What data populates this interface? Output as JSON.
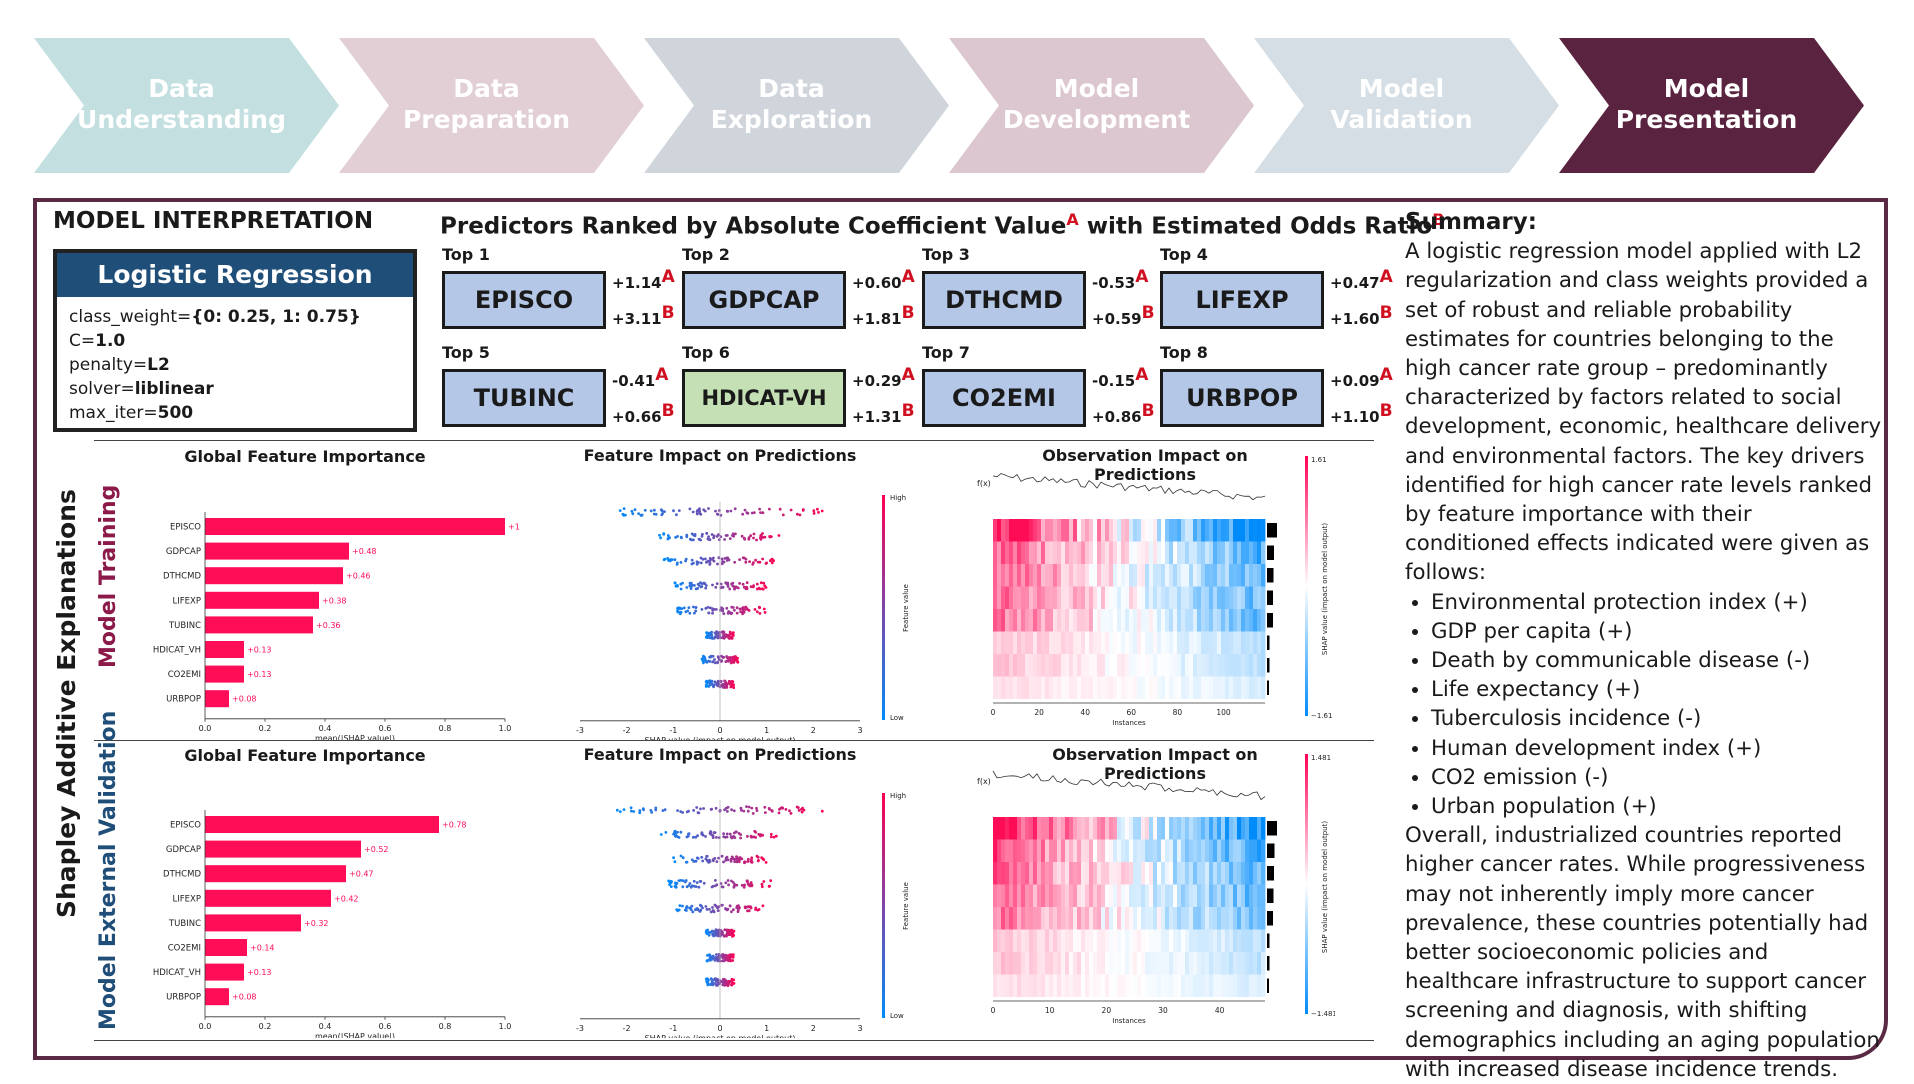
{
  "process_steps": [
    {
      "label": "Data\nUnderstanding",
      "color": "#c3dfe0"
    },
    {
      "label": "Data\nPreparation",
      "color": "#e2cfd6"
    },
    {
      "label": "Data\nExploration",
      "color": "#d0d5dc"
    },
    {
      "label": "Model\nDevelopment",
      "color": "#dcc6cf"
    },
    {
      "label": "Model\nValidation",
      "color": "#d5dee4"
    },
    {
      "label": "Model\nPresentation",
      "color": "#5a2340"
    }
  ],
  "interpretation": {
    "title": "MODEL INTERPRETATION",
    "model_name": "Logistic Regression",
    "params": [
      {
        "key": "class_weight=",
        "value": "{0: 0.25, 1: 0.75}"
      },
      {
        "key": "C=",
        "value": "1.0"
      },
      {
        "key": "penalty=",
        "value": "L2"
      },
      {
        "key": "solver=",
        "value": "liblinear"
      },
      {
        "key": "max_iter=",
        "value": "500"
      }
    ]
  },
  "predictors": {
    "title": "Predictors Ranked by Absolute Coefficient Value",
    "title_sup_a": "A",
    "title_mid": " with Estimated Odds Ratio",
    "title_sup_b": "B",
    "items": [
      {
        "rank": "Top 1",
        "name": "EPISCO",
        "coef": "+1.14",
        "odds": "+3.11",
        "green": false
      },
      {
        "rank": "Top 2",
        "name": "GDPCAP",
        "coef": "+0.60",
        "odds": "+1.81",
        "green": false
      },
      {
        "rank": "Top 3",
        "name": "DTHCMD",
        "coef": "-0.53",
        "odds": "+0.59",
        "green": false
      },
      {
        "rank": "Top 4",
        "name": "LIFEXP",
        "coef": "+0.47",
        "odds": "+1.60",
        "green": false
      },
      {
        "rank": "Top 5",
        "name": "TUBINC",
        "coef": "-0.41",
        "odds": "+0.66",
        "green": false
      },
      {
        "rank": "Top 6",
        "name": "HDICAT-VH",
        "coef": "+0.29",
        "odds": "+1.31",
        "green": true
      },
      {
        "rank": "Top 7",
        "name": "CO2EMI",
        "coef": "-0.15",
        "odds": "+0.86",
        "green": false
      },
      {
        "rank": "Top 8",
        "name": "URBPOP",
        "coef": "+0.09",
        "odds": "+1.10",
        "green": false
      }
    ]
  },
  "shap": {
    "outer_label": "Shapley Additive Explanations",
    "rows": [
      {
        "label": "Model Training",
        "label_color": "#8b1a4a",
        "importance_title": "Global Feature Importance",
        "impact_title": "Feature Impact on Predictions",
        "observation_title": "Observation Impact on Predictions",
        "heatmap_max": "1.61",
        "heatmap_min": "−1.61",
        "heatmap_xticks": [
          "0",
          "20",
          "40",
          "60",
          "80",
          "100"
        ]
      },
      {
        "label": "Model External Validation",
        "label_color": "#1f4e79",
        "importance_title": "Global Feature Importance",
        "impact_title": "Feature Impact on Predictions",
        "observation_title": "Observation Impact on Predictions",
        "heatmap_max": "1.481",
        "heatmap_min": "−1.481",
        "heatmap_xticks": [
          "0",
          "10",
          "20",
          "30",
          "40"
        ]
      }
    ],
    "common": {
      "xlabel_importance": "mean(|SHAP value|)",
      "xlabel_beeswarm": "SHAP value (impact on model output)",
      "beeswarm_ticks": [
        "-3",
        "-2",
        "-1",
        "0",
        "1",
        "2",
        "3"
      ],
      "colorbar_label": "Feature value",
      "colorbar_high": "High",
      "colorbar_low": "Low",
      "heatmap_xlabel": "Instances",
      "heatmap_fx": "f(x)",
      "heatmap_cbar_label": "SHAP value (impact on model output)"
    }
  },
  "chart_data": [
    {
      "type": "bar",
      "title": "Global Feature Importance",
      "xlabel": "mean(|SHAP value|)",
      "ylabel": "",
      "xlim": [
        0,
        1.0
      ],
      "xticks": [
        "0.0",
        "0.2",
        "0.4",
        "0.6",
        "0.8",
        "1.0"
      ],
      "categories": [
        "EPISCO",
        "GDPCAP",
        "DTHCMD",
        "LIFEXP",
        "TUBINC",
        "HDICAT_VH",
        "CO2EMI",
        "URBPOP"
      ],
      "values": [
        1.0,
        0.48,
        0.46,
        0.38,
        0.36,
        0.13,
        0.13,
        0.08
      ],
      "labels": [
        "+1",
        "+0.48",
        "+0.46",
        "+0.38",
        "+0.36",
        "+0.13",
        "+0.13",
        "+0.08"
      ],
      "color": "#ff0d57"
    },
    {
      "type": "bar",
      "title": "Global Feature Importance",
      "xlabel": "mean(|SHAP value|)",
      "ylabel": "",
      "xlim": [
        0,
        1.0
      ],
      "xticks": [
        "0.0",
        "0.2",
        "0.4",
        "0.6",
        "0.8",
        "1.0"
      ],
      "categories": [
        "EPISCO",
        "GDPCAP",
        "DTHCMD",
        "LIFEXP",
        "TUBINC",
        "CO2EMI",
        "HDICAT_VH",
        "URBPOP"
      ],
      "values": [
        0.78,
        0.52,
        0.47,
        0.42,
        0.32,
        0.14,
        0.13,
        0.08
      ],
      "labels": [
        "+0.78",
        "+0.52",
        "+0.47",
        "+0.42",
        "+0.32",
        "+0.14",
        "+0.13",
        "+0.08"
      ],
      "color": "#ff0d57"
    }
  ],
  "summary": {
    "title": "Summary:",
    "intro": "A logistic regression model applied with L2 regularization and class weights provided a set of robust and reliable probability estimates for countries belonging to the high cancer rate group – predominantly characterized by factors related to social development, economic, healthcare delivery and environmental factors. The key drivers identified for high cancer rate levels ranked by feature importance with their conditioned effects indicated were given as follows:",
    "bullets": [
      "Environmental protection index (+)",
      "GDP per capita (+)",
      "Death by communicable disease (-)",
      "Life expectancy (+)",
      "Tuberculosis incidence (-)",
      "Human development index (+)",
      "CO2 emission (-)",
      "Urban population (+)"
    ],
    "outro": "Overall, industrialized countries reported higher cancer rates. While progressiveness may not inherently imply more cancer prevalence, these countries potentially had better socioeconomic policies and healthcare infrastructure to support cancer screening and diagnosis, with shifting demographics including an aging population with increased disease incidence trends."
  }
}
